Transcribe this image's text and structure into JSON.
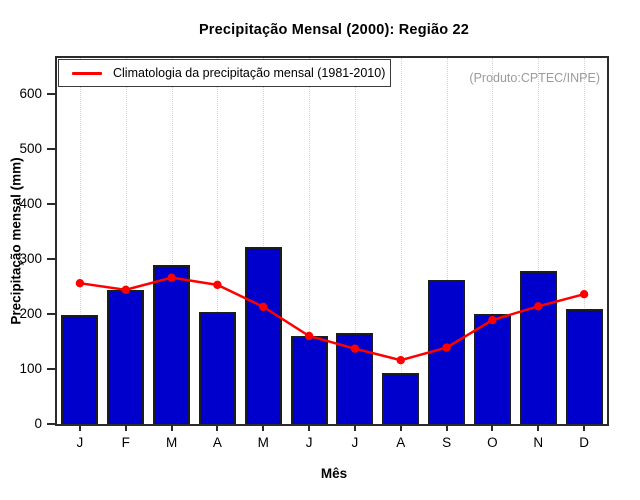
{
  "title": "Precipitação Mensal (2000): Região 22",
  "watermark": "(Produto:CPTEC/INPE)",
  "legend": {
    "label": "Climatologia da precipitação mensal (1981-2010)"
  },
  "chart_data": {
    "type": "bar",
    "title": "Precipitação Mensal (2000): Região 22",
    "categories": [
      "J",
      "F",
      "M",
      "A",
      "M",
      "J",
      "J",
      "A",
      "S",
      "O",
      "N",
      "D"
    ],
    "series": [
      {
        "name": "Precipitação mensal (2000)",
        "type": "bar",
        "color": "#0000cc",
        "values": [
          198,
          244,
          289,
          204,
          322,
          160,
          166,
          92,
          262,
          200,
          279,
          210
        ]
      },
      {
        "name": "Climatologia da precipitação mensal (1981-2010)",
        "type": "line",
        "color": "#ff0000",
        "values": [
          256,
          244,
          266,
          253,
          213,
          160,
          137,
          116,
          139,
          189,
          214,
          236
        ]
      }
    ],
    "xlabel": "Mês",
    "ylabel": "Precipitação mensal (mm)",
    "ylim": [
      0,
      672
    ],
    "yticks": [
      0,
      100,
      200,
      300,
      400,
      500,
      600
    ],
    "grid": "vertical-dotted",
    "legend_position": "top-left",
    "annotation": "(Produto:CPTEC/INPE)"
  }
}
